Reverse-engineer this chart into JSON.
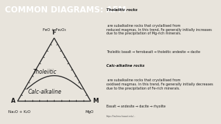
{
  "title": "COMMON DIAGRAMS: AFM",
  "title_bg": "#3a3a3a",
  "title_color": "#ffffff",
  "bg_color": "#e8e4dc",
  "triangle_color": "#2a2a2a",
  "apex_F_label": "F",
  "apex_F_sublabel": "FeO + Fe₂O₃",
  "apex_A_label": "A",
  "apex_A_sublabel": "Na₂O + K₂O",
  "apex_M_label": "M",
  "apex_M_sublabel": "MgO",
  "tholeiitic_label": "Tholeiitic",
  "calc_alkaline_label": "Calc-alkaline",
  "right_text_1_bold": "Tholeiitic rocks",
  "right_text_1": " are subalkaline rocks that crystallised from\nreduced magmas. In this trend, Fe generally initially increases\ndue to the precipitation of Mg-rich minerals.",
  "right_text_2_arrow": "Tholeiitic basalt → ferrobasalt → tholeiitic andesite → dacite",
  "right_text_3_bold": "Calc-alkaline rocks",
  "right_text_3": " are subalkaline rocks that crystallised from\noxidised magmas. In this trend, Fe generally initially decreases\ndue to the precipitation of Fe-rich minerals.",
  "right_text_4_arrow": "Basalt → andesite → dacite → rhyolite",
  "tick_color": "#2a2a2a",
  "curve_color": "#2a2a2a",
  "url_text": "https://laulima.hawaii.edu/..."
}
